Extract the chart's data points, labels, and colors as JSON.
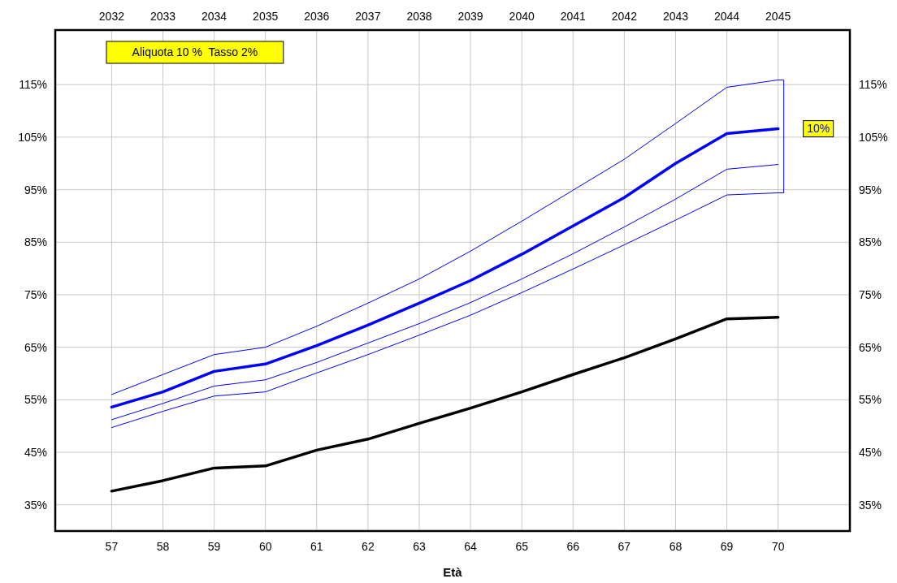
{
  "chart_data": {
    "type": "line",
    "xlabel": "Età",
    "x": [
      57,
      58,
      59,
      60,
      61,
      62,
      63,
      64,
      65,
      66,
      67,
      68,
      69,
      70
    ],
    "xlim": [
      55.9,
      71.4
    ],
    "xticks": [
      57,
      58,
      59,
      60,
      61,
      62,
      63,
      64,
      65,
      66,
      67,
      68,
      69,
      70
    ],
    "x2lim": [
      2030.9,
      2046.4
    ],
    "x2ticks": [
      2032,
      2033,
      2034,
      2035,
      2036,
      2037,
      2038,
      2039,
      2040,
      2041,
      2042,
      2043,
      2044,
      2045
    ],
    "ylim": [
      30,
      125.4
    ],
    "yticks": [
      {
        "value": 35,
        "label": "35%"
      },
      {
        "value": 45,
        "label": "45%"
      },
      {
        "value": 55,
        "label": "55%"
      },
      {
        "value": 65,
        "label": "65%"
      },
      {
        "value": 75,
        "label": "75%"
      },
      {
        "value": 85,
        "label": "85%"
      },
      {
        "value": 95,
        "label": "95%"
      },
      {
        "value": 105,
        "label": "105%"
      },
      {
        "value": 115,
        "label": "115%"
      }
    ],
    "y2lim": [
      30,
      125.4
    ],
    "y2ticks": [
      {
        "value": 35,
        "label": "35%"
      },
      {
        "value": 45,
        "label": "45%"
      },
      {
        "value": 55,
        "label": "55%"
      },
      {
        "value": 65,
        "label": "65%"
      },
      {
        "value": 75,
        "label": "75%"
      },
      {
        "value": 85,
        "label": "85%"
      },
      {
        "value": 95,
        "label": "95%"
      },
      {
        "value": 105,
        "label": "105%"
      },
      {
        "value": 115,
        "label": "115%"
      }
    ],
    "grid": true,
    "marker": "none",
    "line_style": "solid",
    "series": [
      {
        "color": "#0000ff",
        "values": [
          56.0,
          59.8,
          63.6,
          65.0,
          69.0,
          73.4,
          78.0,
          83.3,
          89.0,
          94.9,
          100.8,
          107.6,
          114.5,
          115.9
        ]
      },
      {
        "color": "#0000ff",
        "values": [
          53.6,
          56.5,
          60.4,
          61.8,
          65.3,
          69.2,
          73.4,
          77.7,
          82.7,
          88.1,
          93.5,
          100.0,
          105.7,
          106.6
        ]
      },
      {
        "color": "#0000ff",
        "values": [
          51.2,
          54.3,
          57.6,
          58.8,
          62.1,
          65.8,
          69.5,
          73.5,
          78.0,
          82.8,
          87.9,
          93.2,
          98.9,
          99.8
        ]
      },
      {
        "color": "#0000ff",
        "values": [
          49.7,
          52.8,
          55.7,
          56.5,
          60.1,
          63.6,
          67.3,
          71.1,
          75.4,
          79.9,
          84.5,
          89.2,
          94.0,
          94.4
        ]
      },
      {
        "color": "#000000",
        "values": [
          37.6,
          39.6,
          42.0,
          42.4,
          45.4,
          47.5,
          50.5,
          53.4,
          56.5,
          59.8,
          63.0,
          66.6,
          70.4,
          70.7
        ]
      }
    ],
    "annotations": [
      "Aliquota 10 %  Tasso 2%",
      {
        "text": "10%",
        "x": 70,
        "y": 106.6
      }
    ]
  }
}
